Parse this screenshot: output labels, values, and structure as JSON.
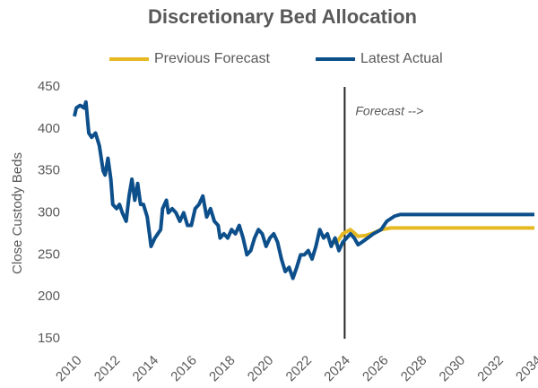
{
  "chart_data": {
    "type": "line",
    "title": "Discretionary Bed Allocation",
    "ylabel": "Close Custody Beds",
    "xlim": [
      2010,
      2034
    ],
    "xticks": [
      2010,
      2012,
      2014,
      2016,
      2018,
      2020,
      2022,
      2024,
      2026,
      2028,
      2030,
      2032,
      2034
    ],
    "ylim": [
      150,
      450
    ],
    "yticks": [
      150,
      200,
      250,
      300,
      350,
      400,
      450
    ],
    "grid": false,
    "legend": "top",
    "annotations": [
      {
        "text": "Forecast -->",
        "x": 2024.1
      }
    ],
    "series": [
      {
        "name": "Previous Forecast",
        "color": "#e6b821",
        "x": [
          2023.6,
          2024.0,
          2024.4,
          2024.8,
          2025.2,
          2025.6,
          2026.0,
          2026.5,
          2034
        ],
        "values": [
          262,
          275,
          280,
          272,
          273,
          276,
          280,
          282,
          282
        ]
      },
      {
        "name": "Latest Actual",
        "color": "#0d4f8b",
        "x": [
          2010.0,
          2010.1,
          2010.3,
          2010.5,
          2010.6,
          2010.75,
          2010.9,
          2011.1,
          2011.3,
          2011.5,
          2011.6,
          2011.75,
          2011.9,
          2012.0,
          2012.2,
          2012.35,
          2012.5,
          2012.7,
          2012.85,
          2013.0,
          2013.15,
          2013.3,
          2013.45,
          2013.6,
          2013.8,
          2014.0,
          2014.2,
          2014.5,
          2014.6,
          2014.8,
          2014.9,
          2015.1,
          2015.3,
          2015.5,
          2015.7,
          2015.9,
          2016.1,
          2016.3,
          2016.5,
          2016.7,
          2016.9,
          2017.1,
          2017.3,
          2017.5,
          2017.6,
          2017.8,
          2018.0,
          2018.2,
          2018.4,
          2018.6,
          2018.8,
          2019.0,
          2019.2,
          2019.4,
          2019.6,
          2019.8,
          2020.0,
          2020.2,
          2020.4,
          2020.6,
          2020.8,
          2021.0,
          2021.2,
          2021.4,
          2021.6,
          2021.8,
          2022.0,
          2022.2,
          2022.4,
          2022.6,
          2022.8,
          2023.0,
          2023.2,
          2023.4,
          2023.6,
          2023.8,
          2024.0,
          2024.2,
          2024.4,
          2024.6,
          2024.8,
          2025.0,
          2025.3,
          2025.6,
          2026.0,
          2026.3,
          2026.7,
          2027.0,
          2034
        ],
        "values": [
          415,
          425,
          428,
          425,
          432,
          395,
          390,
          395,
          380,
          350,
          345,
          365,
          340,
          310,
          305,
          310,
          300,
          290,
          320,
          340,
          315,
          335,
          310,
          310,
          295,
          260,
          270,
          280,
          305,
          315,
          300,
          305,
          300,
          290,
          300,
          285,
          285,
          305,
          310,
          320,
          295,
          305,
          290,
          285,
          270,
          275,
          270,
          280,
          275,
          285,
          270,
          250,
          255,
          270,
          280,
          275,
          260,
          270,
          275,
          265,
          245,
          230,
          235,
          222,
          235,
          250,
          250,
          255,
          245,
          260,
          280,
          270,
          275,
          260,
          270,
          255,
          265,
          270,
          275,
          270,
          262,
          265,
          270,
          275,
          280,
          290,
          296,
          298,
          298
        ]
      }
    ]
  }
}
